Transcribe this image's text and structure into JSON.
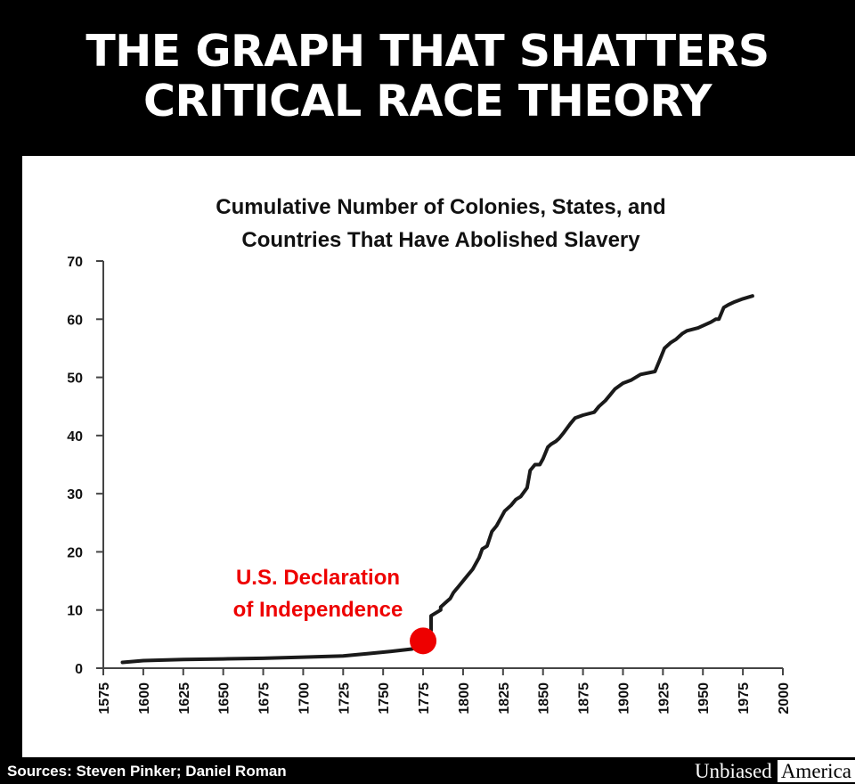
{
  "headline": {
    "line1": "THE GRAPH THAT SHATTERS",
    "line2": "CRITICAL RACE THEORY"
  },
  "colors": {
    "background": "#000000",
    "panel": "#ffffff",
    "line": "#1a1a1a",
    "annotation": "#ee0000"
  },
  "chart_data": {
    "type": "line",
    "title": "Cumulative Number of Colonies, States, and Countries That Have Abolished Slavery",
    "title_lines": [
      "Cumulative Number of Colonies, States, and",
      "Countries That Have Abolished Slavery"
    ],
    "xlabel": "",
    "ylabel": "",
    "xlim": [
      1575,
      2000
    ],
    "ylim": [
      0,
      70
    ],
    "x_ticks": [
      1575,
      1600,
      1625,
      1650,
      1675,
      1700,
      1725,
      1750,
      1775,
      1800,
      1825,
      1850,
      1875,
      1900,
      1925,
      1950,
      1975,
      2000
    ],
    "y_ticks": [
      0,
      10,
      20,
      30,
      40,
      50,
      60,
      70
    ],
    "grid": false,
    "legend": "none",
    "series": [
      {
        "x": [
          1587,
          1600,
          1625,
          1650,
          1675,
          1700,
          1725,
          1740,
          1755,
          1768,
          1774,
          1775,
          1777,
          1780,
          1780,
          1786,
          1786,
          1790,
          1792,
          1794,
          1797,
          1800,
          1803,
          1806,
          1810,
          1812,
          1815,
          1818,
          1821,
          1824,
          1826,
          1830,
          1833,
          1836,
          1840,
          1842,
          1845,
          1848,
          1850,
          1853,
          1855,
          1858,
          1860,
          1863,
          1867,
          1870,
          1875,
          1882,
          1885,
          1889,
          1892,
          1895,
          1900,
          1905,
          1911,
          1920,
          1923,
          1926,
          1930,
          1933,
          1935,
          1937,
          1940,
          1947,
          1955,
          1958,
          1960,
          1963,
          1966,
          1970,
          1975,
          1981
        ],
        "y": [
          1,
          1.3,
          1.5,
          1.6,
          1.7,
          1.9,
          2.1,
          2.5,
          2.9,
          3.3,
          3.8,
          4.2,
          5,
          6.5,
          9,
          10,
          10.5,
          11.5,
          12,
          13,
          14,
          15,
          16,
          17,
          19,
          20.5,
          21,
          23.5,
          24.5,
          26,
          27,
          28,
          29,
          29.5,
          31,
          34,
          35,
          35,
          36,
          38,
          38.5,
          39,
          39.5,
          40.5,
          42,
          43,
          43.5,
          44,
          45,
          46,
          47,
          48,
          49,
          49.5,
          50.5,
          51,
          53,
          55,
          56,
          56.5,
          57,
          57.5,
          58,
          58.5,
          59.5,
          60,
          60,
          62,
          62.5,
          63,
          63.5,
          64
        ]
      }
    ],
    "annotation": {
      "lines": [
        "U.S. Declaration",
        "of Independence"
      ],
      "x": 1775,
      "y": 4.7
    }
  },
  "footer": {
    "sources": "Sources: Steven Pinker; Daniel Roman",
    "brand_part1": "Unbiased",
    "brand_part2": "America"
  }
}
